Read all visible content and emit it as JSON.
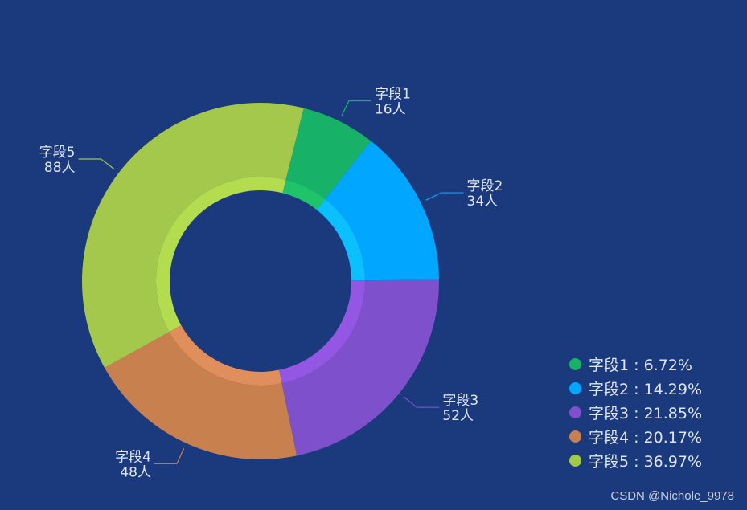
{
  "chart_data": {
    "type": "pie",
    "variant": "donut",
    "title": "",
    "unit": "人",
    "start_angle_deg": 14,
    "direction": "clockwise",
    "legend_position": "bottom-right",
    "series": [
      {
        "name": "字段1",
        "value": 16,
        "label_value": "16人",
        "percent": "6.72%",
        "legend_text": "字段1 : 6.72%",
        "color": "#17b268",
        "inner_color": "#1fc46a"
      },
      {
        "name": "字段2",
        "value": 34,
        "label_value": "34人",
        "percent": "14.29%",
        "legend_text": "字段2 : 14.29%",
        "color": "#00a6ff",
        "inner_color": "#0bc0ff"
      },
      {
        "name": "字段3",
        "value": 52,
        "label_value": "52人",
        "percent": "21.85%",
        "legend_text": "字段3 : 21.85%",
        "color": "#7f50cc",
        "inner_color": "#9357e4"
      },
      {
        "name": "字段4",
        "value": 48,
        "label_value": "48人",
        "percent": "20.17%",
        "legend_text": "字段4 : 20.17%",
        "color": "#c8804f",
        "inner_color": "#e08e5b"
      },
      {
        "name": "字段5",
        "value": 88,
        "label_value": "88人",
        "percent": "36.97%",
        "legend_text": "字段5 : 36.97%",
        "color": "#a4c84c",
        "inner_color": "#b3dd4e"
      }
    ]
  },
  "watermark": "CSDN @Nichole_9978"
}
